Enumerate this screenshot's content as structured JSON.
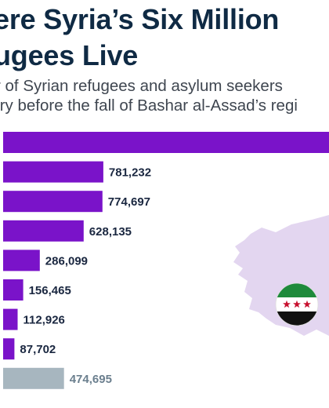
{
  "title_lines": [
    "ere Syria’s Six Million",
    "ugees Live"
  ],
  "subtitle_lines": [
    "r of Syrian refugees and asylum seekers",
    "try before the fall of Bashar al-Assad’s regi"
  ],
  "colors": {
    "bar": "#7a13c9",
    "other_bar": "#a7b6bf",
    "label": "#1a2740",
    "other_label": "#6b7f8e",
    "map": "#e3d6f0",
    "flag_green": "#1e8a3b",
    "flag_black": "#111111",
    "flag_star": "#c8102e"
  },
  "flag_icon": "syrian-independence-flag-icon",
  "chart_data": {
    "type": "bar",
    "orientation": "horizontal",
    "values": [
      null,
      781232,
      774697,
      628135,
      286099,
      156465,
      112926,
      87702,
      474695
    ],
    "value_labels": [
      "",
      "781,232",
      "774,697",
      "628,135",
      "286,099",
      "156,465",
      "112,926",
      "87,702",
      "474,695"
    ],
    "last_bar_is_other": true
  }
}
